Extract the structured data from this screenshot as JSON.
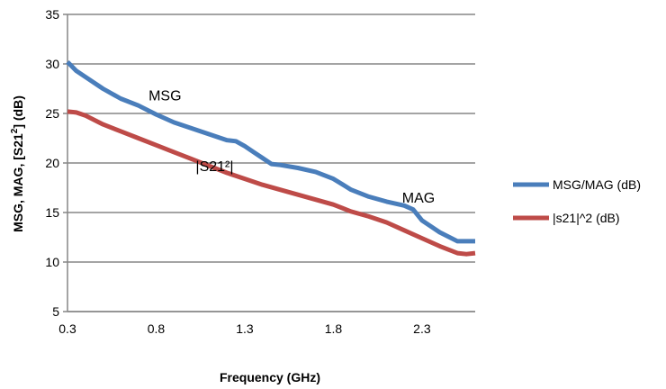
{
  "chart_data": {
    "type": "line",
    "xlabel": "Frequency (GHz)",
    "ylabel_main": "MSG, MAG, [S21",
    "ylabel_sup": "2",
    "ylabel_end": "] (dB)",
    "xlim": [
      0.3,
      2.6
    ],
    "ylim": [
      5,
      35
    ],
    "xticks": [
      0.3,
      0.8,
      1.3,
      1.8,
      2.3
    ],
    "yticks": [
      5,
      10,
      15,
      20,
      25,
      30,
      35
    ],
    "grid": "horizontal",
    "legend_position": "right",
    "series": [
      {
        "name": "MSG/MAG (dB)",
        "color": "#4A7EBB",
        "x": [
          0.3,
          0.35,
          0.4,
          0.5,
          0.6,
          0.7,
          0.8,
          0.9,
          1.0,
          1.1,
          1.2,
          1.25,
          1.3,
          1.35,
          1.4,
          1.45,
          1.5,
          1.6,
          1.7,
          1.8,
          1.9,
          2.0,
          2.1,
          2.2,
          2.25,
          2.3,
          2.4,
          2.5,
          2.6
        ],
        "y": [
          30.2,
          29.3,
          28.7,
          27.5,
          26.5,
          25.8,
          24.9,
          24.1,
          23.5,
          22.9,
          22.3,
          22.2,
          21.7,
          21.1,
          20.5,
          19.9,
          19.8,
          19.5,
          19.1,
          18.4,
          17.3,
          16.6,
          16.1,
          15.7,
          15.3,
          14.2,
          13.0,
          12.1,
          12.1
        ]
      },
      {
        "name": "|s21|^2 (dB)",
        "color": "#BE4B48",
        "x": [
          0.3,
          0.35,
          0.4,
          0.5,
          0.6,
          0.7,
          0.8,
          0.9,
          1.0,
          1.1,
          1.2,
          1.3,
          1.4,
          1.5,
          1.6,
          1.7,
          1.8,
          1.9,
          2.0,
          2.1,
          2.2,
          2.3,
          2.4,
          2.5,
          2.55,
          2.6
        ],
        "y": [
          25.2,
          25.1,
          24.8,
          23.9,
          23.2,
          22.5,
          21.8,
          21.1,
          20.4,
          19.7,
          19.0,
          18.4,
          17.8,
          17.3,
          16.8,
          16.3,
          15.8,
          15.1,
          14.6,
          14.0,
          13.2,
          12.4,
          11.6,
          10.9,
          10.8,
          10.9
        ]
      }
    ],
    "annotations": [
      {
        "text": "MSG",
        "x": 0.85,
        "y": 26.3
      },
      {
        "text": "|S21²|",
        "x": 1.13,
        "y": 19.2
      },
      {
        "text": "MAG",
        "x": 2.28,
        "y": 16.0
      }
    ]
  }
}
